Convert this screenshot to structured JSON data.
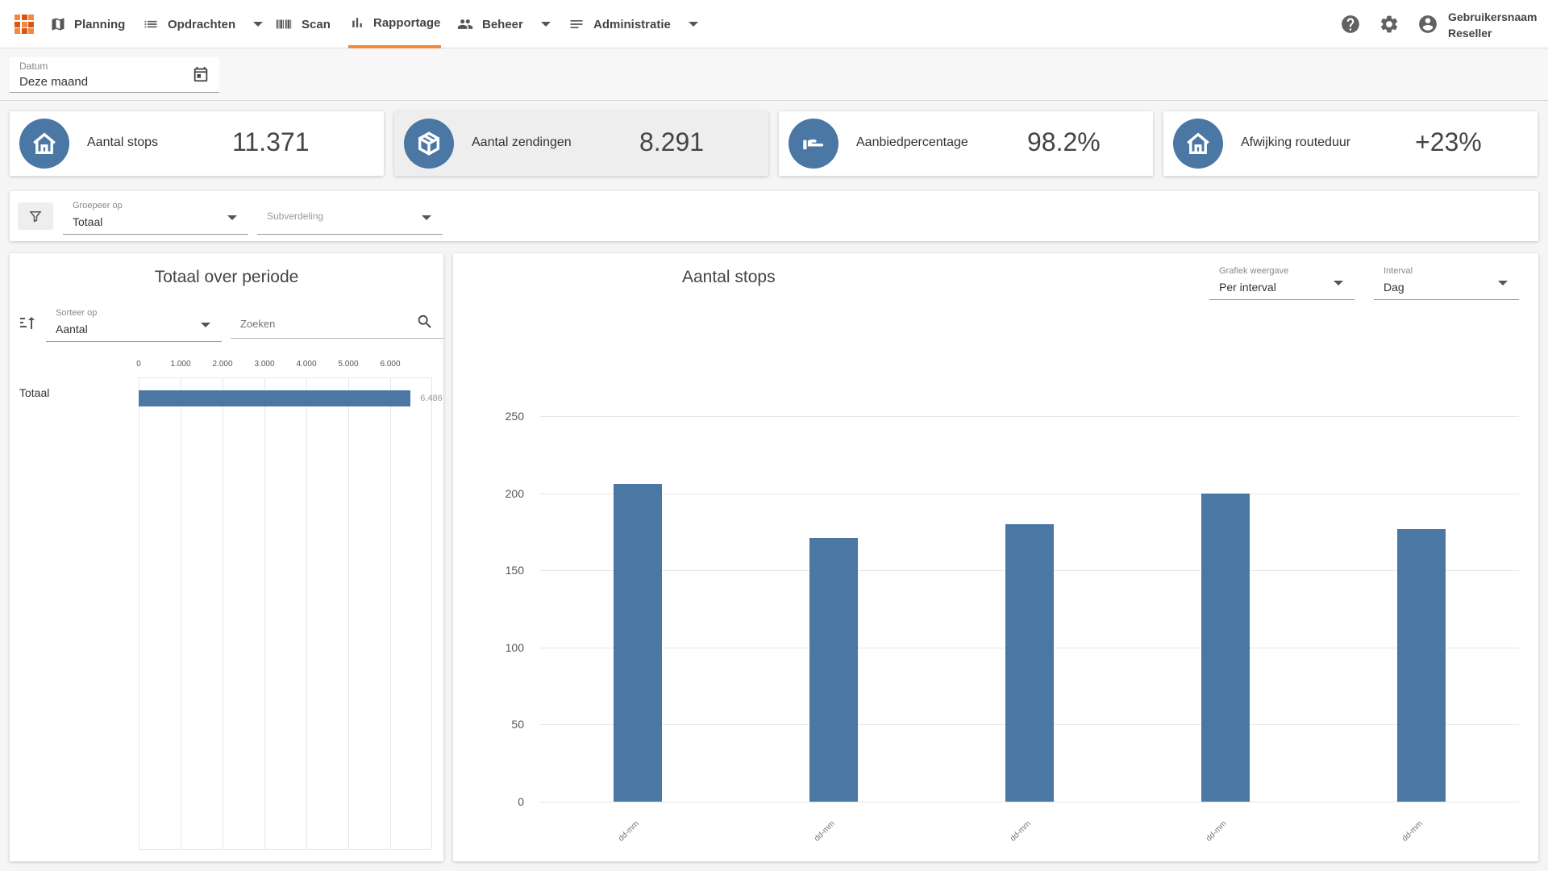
{
  "nav": {
    "items": [
      {
        "label": "Planning",
        "icon": "map-icon"
      },
      {
        "label": "Opdrachten",
        "icon": "list-icon",
        "dropdown": true
      },
      {
        "label": "Scan",
        "icon": "barcode-icon"
      },
      {
        "label": "Rapportage",
        "icon": "bar-chart-icon",
        "active": true
      },
      {
        "label": "Beheer",
        "icon": "people-icon",
        "dropdown": true
      },
      {
        "label": "Administratie",
        "icon": "notes-icon",
        "dropdown": true
      }
    ],
    "user_name": "Gebruikersnaam",
    "user_role": "Reseller"
  },
  "date_filter": {
    "label": "Datum",
    "value": "Deze maand"
  },
  "kpis": [
    {
      "label": "Aantal stops",
      "value": "11.371",
      "icon": "home-icon"
    },
    {
      "label": "Aantal zendingen",
      "value": "8.291",
      "icon": "package-icon",
      "selected": true
    },
    {
      "label": "Aanbiedpercentage",
      "value": "98.2%",
      "icon": "hand-icon"
    },
    {
      "label": "Afwijking routeduur",
      "value": "+23%",
      "icon": "home-icon"
    }
  ],
  "filters": {
    "group_label": "Groepeer op",
    "group_value": "Totaal",
    "subdivision_placeholder": "Subverdeling"
  },
  "left_panel": {
    "title": "Totaal over periode",
    "sort_label": "Sorteer op",
    "sort_value": "Aantal",
    "search_placeholder": "Zoeken"
  },
  "right_panel": {
    "title": "Aantal stops",
    "view_label": "Grafiek weergave",
    "view_value": "Per interval",
    "interval_label": "Interval",
    "interval_value": "Dag"
  },
  "colors": {
    "accent": "#f08a3c",
    "bar": "#4a77a4"
  },
  "chart_data": [
    {
      "type": "bar",
      "orientation": "horizontal",
      "categories": [
        "Totaal"
      ],
      "values": [
        6486
      ],
      "value_labels": [
        "6.486"
      ],
      "x_ticks": [
        "0",
        "1.000",
        "2.000",
        "3.000",
        "4.000",
        "5.000",
        "6.000"
      ],
      "xlim": [
        0,
        7000
      ],
      "grid": true
    },
    {
      "type": "bar",
      "title": "Aantal stops",
      "categories": [
        "dd-mm",
        "dd-mm",
        "dd-mm",
        "dd-mm",
        "dd-mm"
      ],
      "values": [
        206,
        171,
        180,
        200,
        177
      ],
      "y_ticks": [
        "0",
        "50",
        "100",
        "150",
        "200",
        "250"
      ],
      "ylim": [
        0,
        250
      ],
      "grid": true
    }
  ]
}
